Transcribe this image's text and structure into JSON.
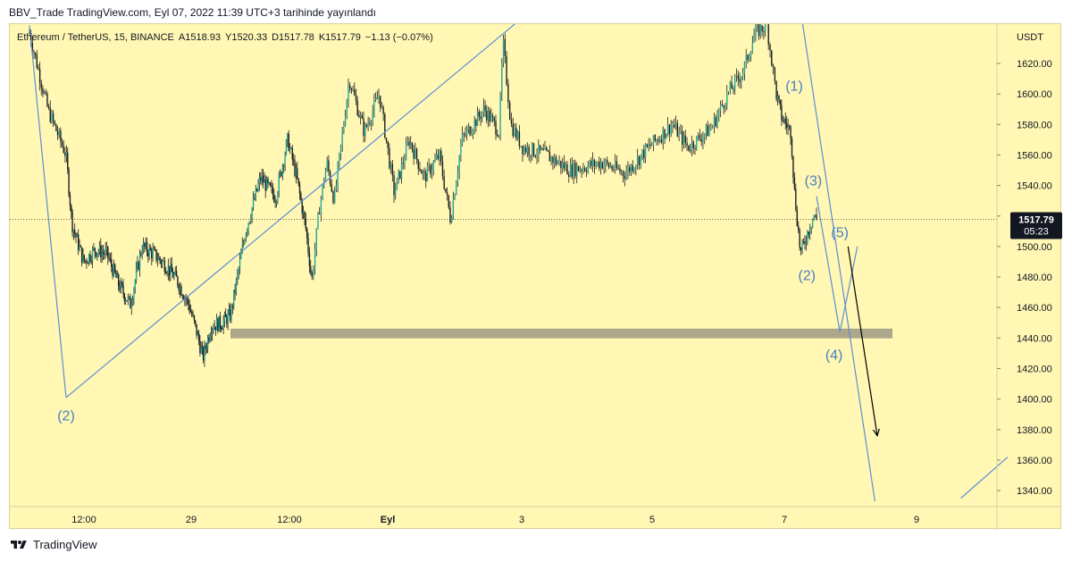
{
  "header": {
    "publish_text": "BBV_Trade TradingView.com, Eyl 07, 2022 11:39 UTC+3 tarihinde yayınlandı"
  },
  "legend": {
    "symbol": "Ethereum / TetherUS, 15, BINANCE",
    "open": "A1518.93",
    "high": "Y1520.33",
    "low": "D1517.78",
    "close": "K1517.79",
    "change": "−1.13 (−0.07%)"
  },
  "footer": {
    "brand": "TradingView",
    "logo_icon": "tradingview-logo-icon"
  },
  "colors": {
    "background": "#fff7b3",
    "candle": "#1b1f23",
    "candle_up_accent": "#26a69a",
    "trendline": "#5b8fd6",
    "support_zone": "#a39c86",
    "wave_label": "#4a7fc4",
    "arrow": "#000000"
  },
  "chart_data": {
    "type": "candlestick",
    "symbol": "Ethereum / TetherUS",
    "interval": "15",
    "exchange": "BINANCE",
    "y_axis": {
      "unit": "USDT",
      "range": [
        1333,
        1650
      ],
      "ticks": [
        1340,
        1360,
        1380,
        1400,
        1420,
        1440,
        1460,
        1480,
        1500,
        1520,
        1540,
        1560,
        1580,
        1600,
        1620
      ]
    },
    "x_axis": {
      "range_days": [
        "Aug 28 05:30",
        "Sep 9 14:30"
      ],
      "ticks": [
        {
          "label": "12:00",
          "t": "Aug 28 12:00"
        },
        {
          "label": "29",
          "t": "Aug 29 00:00"
        },
        {
          "label": "12:00",
          "t": "Aug 29 12:00"
        },
        {
          "label": "Eyl",
          "t": "Sep 1 00:00"
        },
        {
          "label": "3",
          "t": "Sep 3 00:00"
        },
        {
          "label": "5",
          "t": "Sep 5 00:00"
        },
        {
          "label": "7",
          "t": "Sep 7 00:00"
        },
        {
          "label": "9",
          "t": "Sep 9 00:00"
        }
      ]
    },
    "last_price": {
      "value": 1517.79,
      "label": "1517.79",
      "countdown": "05:23"
    },
    "price_path": [
      [
        0,
        1640
      ],
      [
        0.25,
        1590
      ],
      [
        0.5,
        1560
      ],
      [
        0.6,
        1515
      ],
      [
        0.8,
        1490
      ],
      [
        1.0,
        1498
      ],
      [
        1.2,
        1495
      ],
      [
        1.4,
        1475
      ],
      [
        1.6,
        1462
      ],
      [
        1.8,
        1500
      ],
      [
        2.0,
        1495
      ],
      [
        2.2,
        1488
      ],
      [
        2.4,
        1478
      ],
      [
        2.6,
        1462
      ],
      [
        2.75,
        1442
      ],
      [
        2.85,
        1427
      ],
      [
        3.0,
        1448
      ],
      [
        3.2,
        1450
      ],
      [
        3.35,
        1455
      ],
      [
        3.6,
        1510
      ],
      [
        3.85,
        1545
      ],
      [
        4.1,
        1532
      ],
      [
        4.3,
        1570
      ],
      [
        4.45,
        1545
      ],
      [
        4.6,
        1512
      ],
      [
        4.7,
        1478
      ],
      [
        4.8,
        1525
      ],
      [
        4.9,
        1555
      ],
      [
        5.0,
        1530
      ],
      [
        5.2,
        1610
      ],
      [
        5.4,
        1575
      ],
      [
        5.6,
        1600
      ],
      [
        5.8,
        1535
      ],
      [
        6.0,
        1570
      ],
      [
        6.2,
        1545
      ],
      [
        6.4,
        1560
      ],
      [
        6.55,
        1518
      ],
      [
        6.7,
        1570
      ],
      [
        7.0,
        1590
      ],
      [
        7.2,
        1575
      ],
      [
        7.25,
        1635
      ],
      [
        7.35,
        1580
      ],
      [
        7.5,
        1565
      ],
      [
        7.8,
        1560
      ],
      [
        8.1,
        1550
      ],
      [
        8.5,
        1555
      ],
      [
        8.8,
        1548
      ],
      [
        9.1,
        1565
      ],
      [
        9.4,
        1580
      ],
      [
        9.6,
        1565
      ],
      [
        9.9,
        1578
      ],
      [
        10.1,
        1600
      ],
      [
        10.3,
        1615
      ],
      [
        10.45,
        1640
      ],
      [
        10.6,
        1645
      ],
      [
        10.72,
        1600
      ],
      [
        10.8,
        1585
      ],
      [
        10.95,
        1575
      ],
      [
        11.0,
        1538
      ],
      [
        11.1,
        1495
      ],
      [
        11.2,
        1508
      ],
      [
        11.3,
        1520
      ],
      [
        11.35,
        1517.79
      ]
    ],
    "annotations": {
      "wave_labels": [
        {
          "text": "(2)",
          "t": 0.5,
          "price": 1386
        },
        {
          "text": "(1)",
          "t": 11.0,
          "price": 1602
        },
        {
          "text": "(3)",
          "t": 11.3,
          "price": 1540
        },
        {
          "text": "(2)",
          "t": 11.2,
          "price": 1478
        },
        {
          "text": "(5)",
          "t": 11.55,
          "price": 1506
        },
        {
          "text": "(4)",
          "t": 11.5,
          "price": 1426
        }
      ],
      "support_zone": {
        "price_low": 1441,
        "price_high": 1445,
        "t_start": 3.35,
        "t_end": 12.0
      },
      "trendlines": [
        {
          "from": [
            0.0,
            1645
          ],
          "to": [
            0.5,
            1401
          ]
        },
        {
          "from": [
            0.5,
            1401
          ],
          "to": [
            7.8,
            1663
          ]
        },
        {
          "from": [
            11.1,
            1655
          ],
          "to": [
            11.85,
            1333
          ]
        },
        {
          "from": [
            11.35,
            1533
          ],
          "to": [
            11.55,
            1444
          ]
        },
        {
          "from": [
            11.55,
            1444
          ],
          "to": [
            11.7,
            1500
          ]
        },
        {
          "from": [
            12.95,
            1335
          ],
          "to": [
            13.6,
            1362
          ]
        }
      ],
      "projection_arrow": {
        "from": [
          11.62,
          1500
        ],
        "to": [
          11.87,
          1376
        ]
      }
    }
  }
}
